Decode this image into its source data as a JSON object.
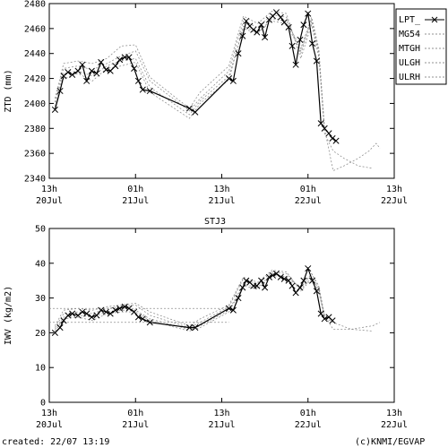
{
  "station": "STJ3",
  "footer": {
    "created": "created: 22/07 13:19",
    "credit": "(c)KNMI/EGVAP"
  },
  "colors": {
    "main": "#000000",
    "other": "#909090",
    "frame": "#000000"
  },
  "x_ticks": [
    {
      "t": 0,
      "top": "13h",
      "bottom": "20Jul"
    },
    {
      "t": 12,
      "top": "01h",
      "bottom": "21Jul"
    },
    {
      "t": 24,
      "top": "13h",
      "bottom": "21Jul"
    },
    {
      "t": 36,
      "top": "01h",
      "bottom": "22Jul"
    },
    {
      "t": 48,
      "top": "13h",
      "bottom": "22Jul"
    }
  ],
  "chart_data": [
    {
      "type": "line",
      "title": "",
      "ylabel": "ZTD (mm)",
      "xlim": [
        0,
        48
      ],
      "ylim": [
        2340,
        2480
      ],
      "yticks": [
        2340,
        2360,
        2380,
        2400,
        2420,
        2440,
        2460,
        2480
      ],
      "legend_position": "top-right",
      "series": [
        {
          "name": "LPT_",
          "style": "main",
          "x": [
            0.8,
            1.5,
            2.0,
            2.6,
            3.2,
            4.0,
            4.6,
            5.2,
            5.9,
            6.6,
            7.2,
            7.9,
            8.5,
            9.2,
            9.8,
            10.5,
            11.1,
            11.8,
            12.4,
            13.0,
            14.0,
            19.5,
            20.3,
            25.0,
            25.6,
            26.3,
            26.9,
            27.4,
            27.9,
            28.4,
            28.9,
            29.5,
            30.0,
            30.6,
            31.1,
            31.6,
            32.2,
            32.7,
            33.3,
            33.8,
            34.3,
            34.9,
            35.4,
            36.0,
            36.6,
            37.2,
            37.8,
            38.3,
            38.9,
            39.4,
            39.9
          ],
          "y": [
            2395,
            2410,
            2422,
            2425,
            2423,
            2426,
            2431,
            2418,
            2426,
            2424,
            2433,
            2427,
            2426,
            2430,
            2435,
            2437,
            2437,
            2428,
            2418,
            2411,
            2410,
            2396,
            2393,
            2420,
            2418,
            2440,
            2454,
            2466,
            2462,
            2459,
            2457,
            2463,
            2453,
            2467,
            2470,
            2473,
            2469,
            2465,
            2461,
            2446,
            2431,
            2451,
            2463,
            2472,
            2448,
            2434,
            2384,
            2380,
            2376,
            2372,
            2370
          ]
        },
        {
          "name": "MG54",
          "style": "other",
          "x": [
            0.8,
            2.0,
            4.0,
            6.0,
            8.0,
            10.0,
            12.0,
            14.0,
            19.5,
            21.0,
            25.0,
            27.0,
            29.0,
            31.0,
            33.0,
            35.0,
            36.5,
            37.5,
            38.3,
            39.5,
            41.0,
            43.0,
            44.5,
            45.5,
            46.0
          ],
          "y": [
            2398,
            2424,
            2426,
            2422,
            2430,
            2434,
            2436,
            2413,
            2391,
            2402,
            2422,
            2460,
            2456,
            2468,
            2466,
            2444,
            2469,
            2444,
            2380,
            2346,
            2350,
            2356,
            2362,
            2368,
            2364
          ]
        },
        {
          "name": "MTGH",
          "style": "other",
          "x": [
            0.8,
            2.0,
            4.0,
            6.0,
            8.0,
            10.0,
            12.0,
            14.0,
            19.5,
            21.0,
            25.0,
            27.0,
            29.0,
            31.0,
            33.0,
            35.0,
            36.5,
            37.5,
            38.3,
            39.5,
            41.0,
            43.0,
            45.0
          ],
          "y": [
            2401,
            2428,
            2430,
            2427,
            2432,
            2438,
            2442,
            2418,
            2394,
            2404,
            2426,
            2466,
            2461,
            2471,
            2469,
            2440,
            2466,
            2440,
            2376,
            2362,
            2356,
            2350,
            2348
          ]
        },
        {
          "name": "ULGH",
          "style": "other",
          "x": [
            0.8,
            2.0,
            4.0,
            6.0,
            8.0,
            10.0,
            12.0,
            14.0,
            19.5,
            21.0,
            25.0,
            27.0,
            29.0,
            31.0,
            33.0,
            35.0,
            36.5,
            37.5,
            38.3
          ],
          "y": [
            2404,
            2432,
            2434,
            2432,
            2436,
            2446,
            2447,
            2421,
            2396,
            2409,
            2430,
            2470,
            2464,
            2474,
            2472,
            2436,
            2463,
            2437,
            2380
          ]
        },
        {
          "name": "ULRH",
          "style": "other",
          "x": [
            0.8,
            2.0,
            4.0,
            6.0,
            8.0,
            10.0,
            12.0,
            14.0,
            19.5,
            21.0,
            25.0,
            27.0,
            29.0,
            31.0,
            33.0,
            35.0,
            36.5,
            37.5,
            38.3
          ],
          "y": [
            2397,
            2420,
            2424,
            2418,
            2428,
            2430,
            2433,
            2409,
            2388,
            2400,
            2419,
            2462,
            2457,
            2466,
            2464,
            2442,
            2468,
            2442,
            2378
          ]
        }
      ]
    },
    {
      "type": "line",
      "title": "",
      "ylabel": "IWV (kg/m2)",
      "xlim": [
        0,
        48
      ],
      "ylim": [
        0,
        50
      ],
      "yticks": [
        0,
        10,
        20,
        30,
        40,
        50
      ],
      "series": [
        {
          "name": "LPT_",
          "style": "main",
          "x": [
            0.8,
            1.5,
            2.0,
            2.6,
            3.2,
            4.0,
            4.6,
            5.2,
            5.9,
            6.6,
            7.2,
            7.9,
            8.5,
            9.2,
            9.8,
            10.5,
            11.1,
            11.8,
            12.4,
            13.0,
            14.0,
            19.5,
            20.3,
            25.0,
            25.6,
            26.3,
            26.9,
            27.4,
            27.9,
            28.4,
            28.9,
            29.5,
            30.0,
            30.6,
            31.1,
            31.6,
            32.2,
            32.7,
            33.3,
            33.8,
            34.3,
            34.9,
            35.4,
            36.0,
            36.6,
            37.2,
            37.8,
            38.3,
            38.9,
            39.4
          ],
          "y": [
            20,
            21.5,
            23.5,
            25,
            25.5,
            25,
            26,
            25.5,
            24.5,
            25,
            26.5,
            26,
            25.5,
            26.5,
            27,
            27.5,
            27,
            26,
            24.5,
            24,
            23,
            21.5,
            21.5,
            27,
            26.5,
            30,
            33,
            35,
            34.5,
            33.5,
            33.5,
            35,
            33,
            36,
            36.5,
            37,
            36,
            35.5,
            35,
            33.5,
            31.5,
            33,
            35,
            38.5,
            35,
            32,
            25.5,
            24,
            24.5,
            23.5
          ]
        },
        {
          "name": "MG54",
          "style": "other",
          "x": [
            0.8,
            2.0,
            4.0,
            6.0,
            8.0,
            10.0,
            12.0,
            14.0,
            19.5,
            21.0,
            25.0,
            27.0,
            29.0,
            31.0,
            33.0,
            35.0,
            36.5,
            37.5,
            38.3,
            39.5,
            42.0,
            45.0,
            46.0
          ],
          "y": [
            21,
            24.5,
            25,
            24.5,
            26,
            26.5,
            26.5,
            24,
            21,
            22,
            26.5,
            34,
            33,
            37,
            36,
            33,
            37,
            33.5,
            25,
            21,
            21,
            22,
            23
          ]
        },
        {
          "name": "MTGH",
          "style": "other",
          "x": [
            0.8,
            2.0,
            4.0,
            6.0,
            8.0,
            10.0,
            12.0,
            14.0,
            19.5,
            21.0,
            25.0,
            27.0,
            29.0,
            31.0,
            33.0,
            35.0,
            36.5,
            37.5,
            38.3,
            39.5,
            42.0,
            45.0
          ],
          "y": [
            21.5,
            25.5,
            26,
            25.5,
            27,
            27.5,
            28,
            25,
            21.5,
            23,
            27.5,
            35.5,
            34,
            37.5,
            37,
            32.5,
            36,
            32.5,
            24.5,
            23,
            21,
            20.5
          ]
        },
        {
          "name": "ULGH",
          "style": "other",
          "x": [
            0.8,
            2.0,
            4.0,
            6.0,
            8.0,
            10.0,
            12.0,
            14.0,
            19.5,
            21.0,
            25.0,
            27.0,
            29.0,
            31.0,
            33.0,
            35.0,
            36.5,
            37.5,
            38.3
          ],
          "y": [
            22,
            26.5,
            27,
            26.5,
            27.5,
            28,
            28.5,
            26,
            22,
            24,
            28,
            36,
            34.5,
            38,
            37.5,
            32,
            35.5,
            32,
            24
          ]
        },
        {
          "name": "ULRH",
          "style": "other",
          "x": [
            0.8,
            2.0,
            4.0,
            6.0,
            8.0,
            10.0,
            12.0,
            14.0,
            19.5,
            21.0,
            25.0,
            27.0,
            29.0,
            31.0,
            33.0,
            35.0,
            36.5,
            37.5,
            38.3
          ],
          "y": [
            20.5,
            24,
            24.5,
            23.5,
            25.5,
            26,
            26,
            23.5,
            20.5,
            21.5,
            26,
            33.5,
            32.5,
            36.5,
            36,
            33,
            37,
            33,
            25
          ]
        }
      ],
      "reference_lines": [
        27,
        23
      ]
    }
  ]
}
